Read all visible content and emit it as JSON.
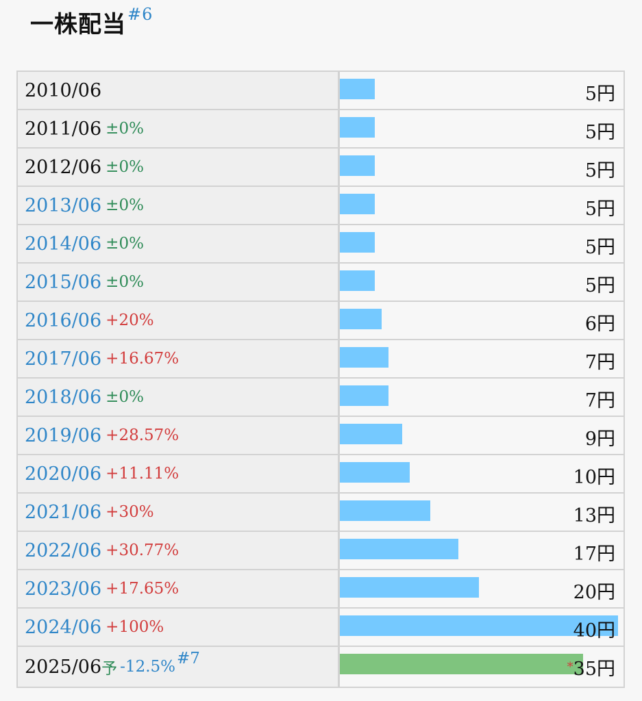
{
  "header": {
    "title": "一株配当",
    "footnote": "#6"
  },
  "table": {
    "max_value": 40,
    "rows": [
      {
        "date": "2010/06",
        "link": false,
        "change": "",
        "change_type": "",
        "value": 5,
        "label": "5円",
        "forecast": false
      },
      {
        "date": "2011/06",
        "link": false,
        "change": "±0%",
        "change_type": "zero",
        "value": 5,
        "label": "5円",
        "forecast": false
      },
      {
        "date": "2012/06",
        "link": false,
        "change": "±0%",
        "change_type": "zero",
        "value": 5,
        "label": "5円",
        "forecast": false
      },
      {
        "date": "2013/06",
        "link": true,
        "change": "±0%",
        "change_type": "zero",
        "value": 5,
        "label": "5円",
        "forecast": false
      },
      {
        "date": "2014/06",
        "link": true,
        "change": "±0%",
        "change_type": "zero",
        "value": 5,
        "label": "5円",
        "forecast": false
      },
      {
        "date": "2015/06",
        "link": true,
        "change": "±0%",
        "change_type": "zero",
        "value": 5,
        "label": "5円",
        "forecast": false
      },
      {
        "date": "2016/06",
        "link": true,
        "change": "+20%",
        "change_type": "up",
        "value": 6,
        "label": "6円",
        "forecast": false
      },
      {
        "date": "2017/06",
        "link": true,
        "change": "+16.67%",
        "change_type": "up",
        "value": 7,
        "label": "7円",
        "forecast": false
      },
      {
        "date": "2018/06",
        "link": true,
        "change": "±0%",
        "change_type": "zero",
        "value": 7,
        "label": "7円",
        "forecast": false
      },
      {
        "date": "2019/06",
        "link": true,
        "change": "+28.57%",
        "change_type": "up",
        "value": 9,
        "label": "9円",
        "forecast": false
      },
      {
        "date": "2020/06",
        "link": true,
        "change": "+11.11%",
        "change_type": "up",
        "value": 10,
        "label": "10円",
        "forecast": false
      },
      {
        "date": "2021/06",
        "link": true,
        "change": "+30%",
        "change_type": "up",
        "value": 13,
        "label": "13円",
        "forecast": false
      },
      {
        "date": "2022/06",
        "link": true,
        "change": "+30.77%",
        "change_type": "up",
        "value": 17,
        "label": "17円",
        "forecast": false
      },
      {
        "date": "2023/06",
        "link": true,
        "change": "+17.65%",
        "change_type": "up",
        "value": 20,
        "label": "20円",
        "forecast": false
      },
      {
        "date": "2024/06",
        "link": true,
        "change": "+100%",
        "change_type": "up",
        "value": 40,
        "label": "40円",
        "forecast": false
      },
      {
        "date": "2025/06",
        "link": false,
        "yoso": "予",
        "change": "-12.5%",
        "change_type": "down",
        "footnote": "#7",
        "value": 35,
        "label": "35円",
        "forecast": true,
        "asterisk": "*"
      }
    ]
  },
  "colors": {
    "bar": "#75c9ff",
    "forecast_bar": "#7fc47e",
    "up": "#d23c3c",
    "zero": "#2e8b57",
    "link": "#2f86c8"
  }
}
